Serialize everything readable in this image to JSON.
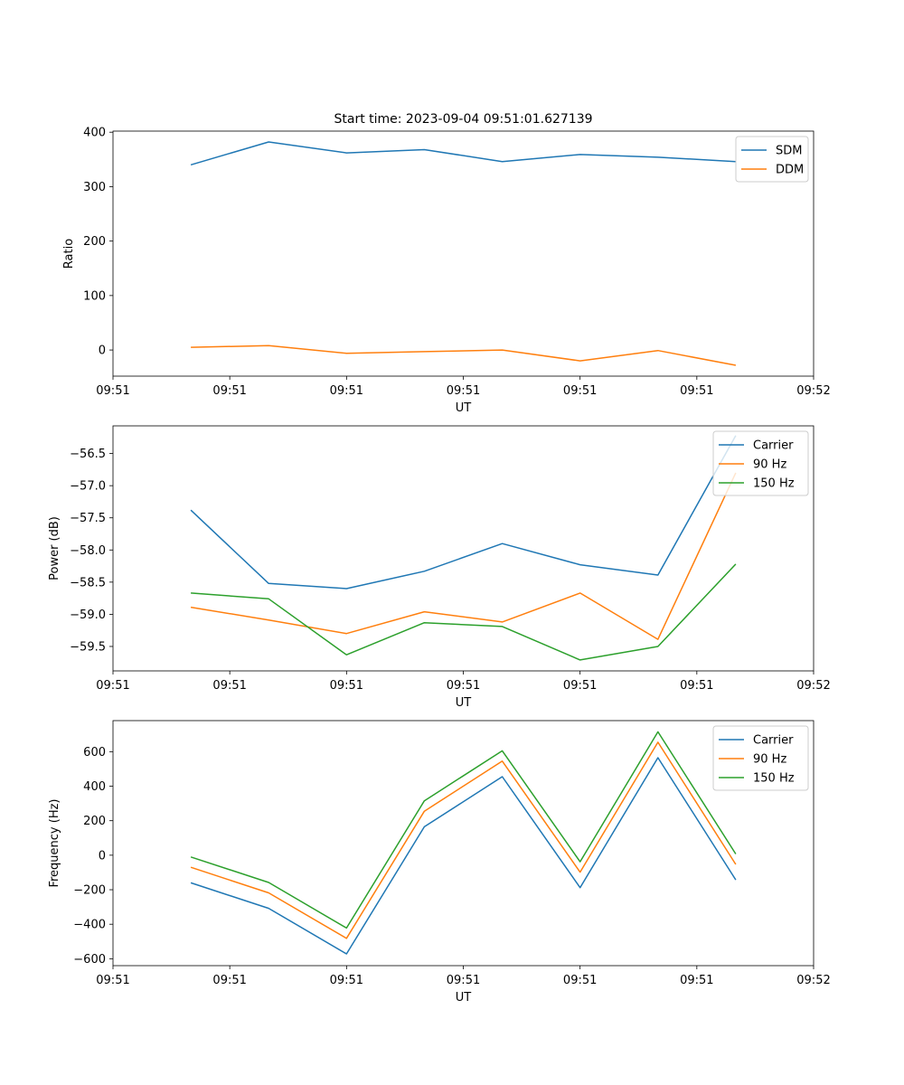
{
  "figure_title": "Start time: 2023-09-04 09:51:01.627139",
  "colors": {
    "blue": "#1f77b4",
    "orange": "#ff7f0e",
    "green": "#2ca02c"
  },
  "chart_data": [
    {
      "type": "line",
      "title": "Start time: 2023-09-04 09:51:01.627139",
      "xlabel": "UT",
      "ylabel": "Ratio",
      "x": [
        1,
        2,
        3,
        4,
        5,
        6,
        7,
        8
      ],
      "xlim": [
        0,
        9
      ],
      "xticks": [
        0,
        1.5,
        3,
        4.5,
        6,
        7.5,
        9
      ],
      "xtick_labels": [
        "09:51",
        "09:51",
        "09:51",
        "09:51",
        "09:51",
        "09:51",
        "09:52"
      ],
      "ylim": [
        -48,
        402
      ],
      "yticks": [
        0,
        100,
        200,
        300,
        400
      ],
      "ytick_labels": [
        "0",
        "100",
        "200",
        "300",
        "400"
      ],
      "legend": "top-right",
      "series": [
        {
          "name": "SDM",
          "color": "#1f77b4",
          "values": [
            340,
            382,
            362,
            368,
            346,
            359,
            354,
            346
          ]
        },
        {
          "name": "DDM",
          "color": "#ff7f0e",
          "values": [
            5,
            8,
            -6,
            -3,
            0,
            -20,
            -1,
            -28
          ]
        }
      ]
    },
    {
      "type": "line",
      "title": "",
      "xlabel": "UT",
      "ylabel": "Power (dB)",
      "x": [
        1,
        2,
        3,
        4,
        5,
        6,
        7,
        8
      ],
      "xlim": [
        0,
        9
      ],
      "xticks": [
        0,
        1.5,
        3,
        4.5,
        6,
        7.5,
        9
      ],
      "xtick_labels": [
        "09:51",
        "09:51",
        "09:51",
        "09:51",
        "09:51",
        "09:51",
        "09:52"
      ],
      "ylim": [
        -59.88,
        -56.07
      ],
      "yticks": [
        -59.5,
        -59.0,
        -58.5,
        -58.0,
        -57.5,
        -57.0,
        -56.5
      ],
      "ytick_labels": [
        "−59.5",
        "−59.0",
        "−58.5",
        "−58.0",
        "−57.5",
        "−57.0",
        "−56.5"
      ],
      "legend": "top-right",
      "series": [
        {
          "name": "Carrier",
          "color": "#1f77b4",
          "values": [
            -57.38,
            -58.52,
            -58.6,
            -58.33,
            -57.9,
            -58.23,
            -58.39,
            -56.22
          ]
        },
        {
          "name": "90 Hz",
          "color": "#ff7f0e",
          "values": [
            -58.89,
            -59.09,
            -59.3,
            -58.96,
            -59.12,
            -58.67,
            -59.39,
            -56.8
          ]
        },
        {
          "name": "150 Hz",
          "color": "#2ca02c",
          "values": [
            -58.67,
            -58.76,
            -59.63,
            -59.13,
            -59.19,
            -59.71,
            -59.5,
            -58.22
          ]
        }
      ]
    },
    {
      "type": "line",
      "title": "",
      "xlabel": "UT",
      "ylabel": "Frequency (Hz)",
      "x": [
        1,
        2,
        3,
        4,
        5,
        6,
        7,
        8
      ],
      "xlim": [
        0,
        9
      ],
      "xticks": [
        0,
        1.5,
        3,
        4.5,
        6,
        7.5,
        9
      ],
      "xtick_labels": [
        "09:51",
        "09:51",
        "09:51",
        "09:51",
        "09:51",
        "09:51",
        "09:52"
      ],
      "ylim": [
        -640,
        780
      ],
      "yticks": [
        -600,
        -400,
        -200,
        0,
        200,
        400,
        600
      ],
      "ytick_labels": [
        "−600",
        "−400",
        "−200",
        "0",
        "200",
        "400",
        "600"
      ],
      "legend": "top-right",
      "series": [
        {
          "name": "Carrier",
          "color": "#1f77b4",
          "values": [
            -160,
            -308,
            -572,
            165,
            455,
            -188,
            565,
            -143
          ]
        },
        {
          "name": "90 Hz",
          "color": "#ff7f0e",
          "values": [
            -70,
            -218,
            -482,
            255,
            545,
            -98,
            655,
            -53
          ]
        },
        {
          "name": "150 Hz",
          "color": "#2ca02c",
          "values": [
            -10,
            -158,
            -422,
            315,
            605,
            -38,
            715,
            7
          ]
        }
      ]
    }
  ]
}
